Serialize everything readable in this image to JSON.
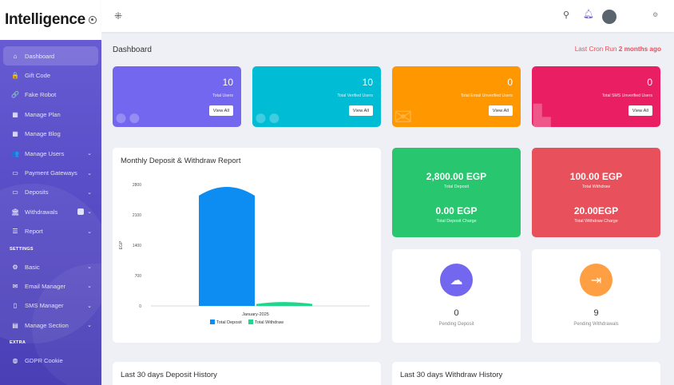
{
  "sidebar": {
    "logo": "Intelligence",
    "items": [
      {
        "label": "Dashboard",
        "icon": "home-icon",
        "glyph": "⌂",
        "active": true
      },
      {
        "label": "Gift Code",
        "icon": "lock-icon",
        "glyph": "🔒"
      },
      {
        "label": "Fake Robot",
        "icon": "link-icon",
        "glyph": "🔗"
      },
      {
        "label": "Manage Plan",
        "icon": "box-icon",
        "glyph": "▦"
      },
      {
        "label": "Manage Blog",
        "icon": "box-icon",
        "glyph": "▦"
      },
      {
        "label": "Manage Users",
        "icon": "users-icon",
        "glyph": "👥",
        "chevron": true
      },
      {
        "label": "Payment Gateways",
        "icon": "card-icon",
        "glyph": "▭",
        "chevron": true
      },
      {
        "label": "Deposits",
        "icon": "card-icon",
        "glyph": "▭",
        "chevron": true
      },
      {
        "label": "Withdrawals",
        "icon": "bank-icon",
        "glyph": "🏛",
        "chevron": true,
        "badge": true
      },
      {
        "label": "Report",
        "icon": "list-icon",
        "glyph": "☰",
        "chevron": true
      }
    ],
    "section_settings": "SETTINGS",
    "settings_items": [
      {
        "label": "Basic",
        "icon": "gear-icon",
        "glyph": "⚙",
        "chevron": true
      },
      {
        "label": "Email Manager",
        "icon": "mail-icon",
        "glyph": "✉",
        "chevron": true
      },
      {
        "label": "SMS Manager",
        "icon": "phone-icon",
        "glyph": "▯",
        "chevron": true
      },
      {
        "label": "Manage Section",
        "icon": "doc-icon",
        "glyph": "▤",
        "chevron": true
      }
    ],
    "section_extra": "EXTRA",
    "extra_items": [
      {
        "label": "GDPR Cookie",
        "icon": "cookie-icon",
        "glyph": "◍"
      }
    ]
  },
  "header": {
    "title": "Dashboard",
    "cron_prefix": "Last Cron Run ",
    "cron_value": "2 months ago"
  },
  "stats": [
    {
      "value": "10",
      "label": "Total Users",
      "button": "View All"
    },
    {
      "value": "10",
      "label": "Total Verified Users",
      "button": "View All"
    },
    {
      "value": "0",
      "label": "Total Email Unverified Users",
      "button": "View All"
    },
    {
      "value": "0",
      "label": "Total SMS Unverified Users",
      "button": "View All"
    }
  ],
  "report": {
    "title": "Monthly Deposit & Withdraw Report"
  },
  "money": {
    "deposit": {
      "v1": "2,800.00 EGP",
      "l1": "Total Deposit",
      "v2": "0.00 EGP",
      "l2": "Total Deposit Charge"
    },
    "withdraw": {
      "v1": "100.00 EGP",
      "l1": "Total Withdraw",
      "v2": "20.00EGP",
      "l2": "Total Withdraw Charge"
    }
  },
  "pending": [
    {
      "value": "0",
      "label": "Pending Deposit"
    },
    {
      "value": "9",
      "label": "Pending Withdrawals"
    }
  ],
  "bottom": {
    "deposit_history": "Last 30 days Deposit History",
    "withdraw_history": "Last 30 days Withdraw History"
  },
  "colors": {
    "accent": "#7367f0",
    "deposit": "#0d8df2",
    "withdraw": "#1fd68a"
  },
  "chart_data": {
    "type": "area",
    "categories": [
      "January-2025"
    ],
    "series": [
      {
        "name": "Total Deposit",
        "values": [
          2800
        ]
      },
      {
        "name": "Total Withdraw",
        "values": [
          100
        ]
      }
    ],
    "ylabel": "EGP",
    "yticks": [
      0,
      700,
      1400,
      2100,
      2800
    ],
    "ylim": [
      0,
      2800
    ],
    "legend": "bottom"
  }
}
